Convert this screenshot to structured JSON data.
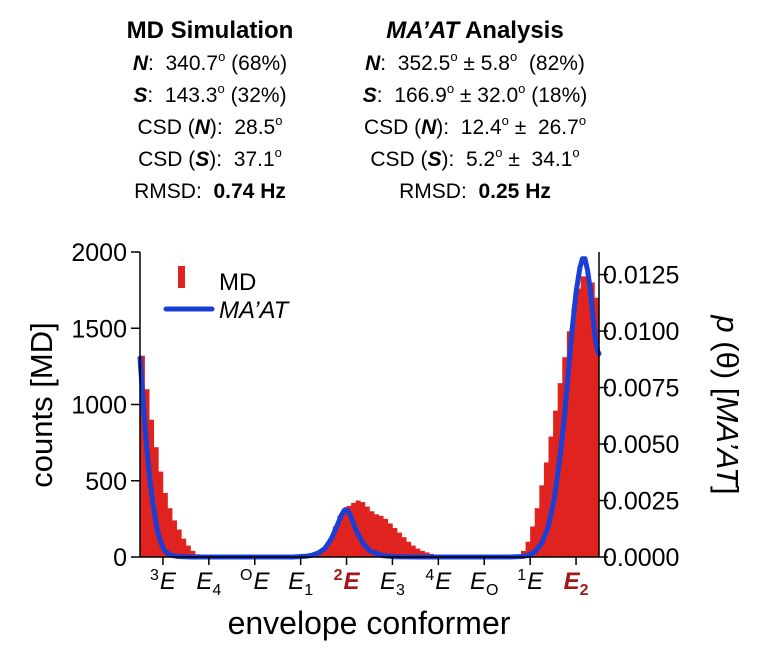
{
  "stats": {
    "md": {
      "title": "MD Simulation",
      "n_label": "N",
      "n_value": "340.7",
      "n_pct": "(68%)",
      "s_label": "S",
      "s_value": "143.3",
      "s_pct": "(32%)",
      "csd_prefix": "CSD (",
      "csd_suffix": "):",
      "csd_n": "28.5",
      "csd_s": "37.1",
      "rmsd_label": "RMSD:",
      "rmsd_value": "0.74 Hz"
    },
    "maat": {
      "title_italic": "MA’AT",
      "title_rest": " Analysis",
      "n_label": "N",
      "n_value": "352.5",
      "n_err": "5.8",
      "n_pct": "(82%)",
      "s_label": "S",
      "s_value": "166.9",
      "s_err": "32.0",
      "s_pct": "(18%)",
      "csd_prefix": "CSD (",
      "csd_suffix": "):",
      "csd_n": "12.4",
      "csd_n_err": "26.7",
      "csd_s": "5.2",
      "csd_s_err": "34.1",
      "rmsd_label": "RMSD:",
      "rmsd_value": "0.25 Hz"
    },
    "deg_mark": "o",
    "pm": "±"
  },
  "chart_data": {
    "type": "bar",
    "xlabel": "envelope conformer",
    "ylabel_left": "counts [MD]",
    "ylabel_right_p": "p",
    "ylabel_right_theta": "(θ) [",
    "ylabel_right_maat": "MA’AT",
    "ylabel_right_close": "]",
    "xlim": [
      0,
      360
    ],
    "ylim_left": [
      0,
      2000
    ],
    "ylim_right": [
      0,
      0.0135
    ],
    "yticks_left": [
      "0",
      "500",
      "1000",
      "1500",
      "2000"
    ],
    "yticks_left_values": [
      0,
      500,
      1000,
      1500,
      2000
    ],
    "yticks_right": [
      "0.0000",
      "0.0025",
      "0.0050",
      "0.0075",
      "0.0100",
      "0.0125"
    ],
    "yticks_right_values": [
      0,
      0.0025,
      0.005,
      0.0075,
      0.01,
      0.0125
    ],
    "x_tick_labels": [
      {
        "x": 18,
        "pre": "3",
        "main": "E",
        "sub": "",
        "highlight": false
      },
      {
        "x": 54,
        "pre": "",
        "main": "E",
        "sub": "4",
        "highlight": false
      },
      {
        "x": 90,
        "pre": "O",
        "main": "E",
        "sub": "",
        "highlight": false
      },
      {
        "x": 126,
        "pre": "",
        "main": "E",
        "sub": "1",
        "highlight": false
      },
      {
        "x": 162,
        "pre": "2",
        "main": "E",
        "sub": "",
        "highlight": true
      },
      {
        "x": 198,
        "pre": "",
        "main": "E",
        "sub": "3",
        "highlight": false
      },
      {
        "x": 234,
        "pre": "4",
        "main": "E",
        "sub": "",
        "highlight": false
      },
      {
        "x": 270,
        "pre": "",
        "main": "E",
        "sub": "O",
        "highlight": false
      },
      {
        "x": 306,
        "pre": "1",
        "main": "E",
        "sub": "",
        "highlight": false
      },
      {
        "x": 342,
        "pre": "",
        "main": "E",
        "sub": "2",
        "highlight": true
      }
    ],
    "highlight_color": "#a01818",
    "legend": {
      "md": "MD",
      "maat": "MA’AT",
      "position": "top-left"
    },
    "series": [
      {
        "name": "MD",
        "kind": "histogram",
        "axis": "left",
        "color": "#e0231f",
        "bin_width": 3.6,
        "bin_start": 0,
        "values": [
          1320,
          1100,
          900,
          720,
          560,
          420,
          320,
          240,
          180,
          120,
          75,
          40,
          18,
          6,
          2,
          0,
          0,
          0,
          0,
          0,
          0,
          0,
          0,
          0,
          0,
          0,
          0,
          0,
          0,
          0,
          0,
          0,
          0,
          0,
          0,
          0,
          2,
          6,
          15,
          35,
          70,
          120,
          200,
          270,
          315,
          335,
          355,
          370,
          360,
          330,
          300,
          280,
          270,
          250,
          220,
          190,
          160,
          130,
          100,
          75,
          55,
          40,
          30,
          20,
          12,
          6,
          2,
          0,
          0,
          0,
          0,
          0,
          0,
          0,
          0,
          0,
          0,
          0,
          0,
          0,
          2,
          6,
          15,
          40,
          100,
          200,
          320,
          470,
          620,
          790,
          960,
          1140,
          1310,
          1480,
          1630,
          1760,
          1840,
          1840,
          1800,
          1700
        ]
      },
      {
        "name": "MA’AT",
        "kind": "line",
        "axis": "right",
        "color": "#1a3fd6",
        "x": [
          0,
          2,
          4,
          6,
          8,
          10,
          12,
          14,
          16,
          18,
          20,
          24,
          30,
          40,
          60,
          80,
          100,
          120,
          130,
          135,
          140,
          145,
          150,
          153,
          156,
          158,
          160,
          161,
          163,
          165,
          167,
          170,
          175,
          180,
          190,
          200,
          220,
          240,
          260,
          280,
          290,
          300,
          305,
          310,
          315,
          320,
          325,
          330,
          333,
          336,
          339,
          342,
          345,
          347,
          349,
          351,
          353,
          355,
          357,
          359,
          360
        ],
        "y": [
          0.0088,
          0.0072,
          0.0057,
          0.0044,
          0.0033,
          0.0024,
          0.0017,
          0.0011,
          0.0007,
          0.00042,
          0.00024,
          8e-05,
          2e-05,
          0,
          0,
          0,
          0,
          0,
          3e-05,
          8e-05,
          0.00018,
          0.00038,
          0.0008,
          0.00118,
          0.00158,
          0.00185,
          0.00205,
          0.0021,
          0.00205,
          0.00185,
          0.00155,
          0.00112,
          0.0006,
          0.00028,
          6e-05,
          1e-05,
          0,
          0,
          0,
          0,
          0,
          2e-05,
          8e-05,
          0.00025,
          0.0006,
          0.0013,
          0.0026,
          0.0047,
          0.0063,
          0.0082,
          0.0101,
          0.0117,
          0.0128,
          0.0132,
          0.0132,
          0.0127,
          0.0119,
          0.0108,
          0.0097,
          0.0091,
          0.009
        ]
      }
    ]
  }
}
